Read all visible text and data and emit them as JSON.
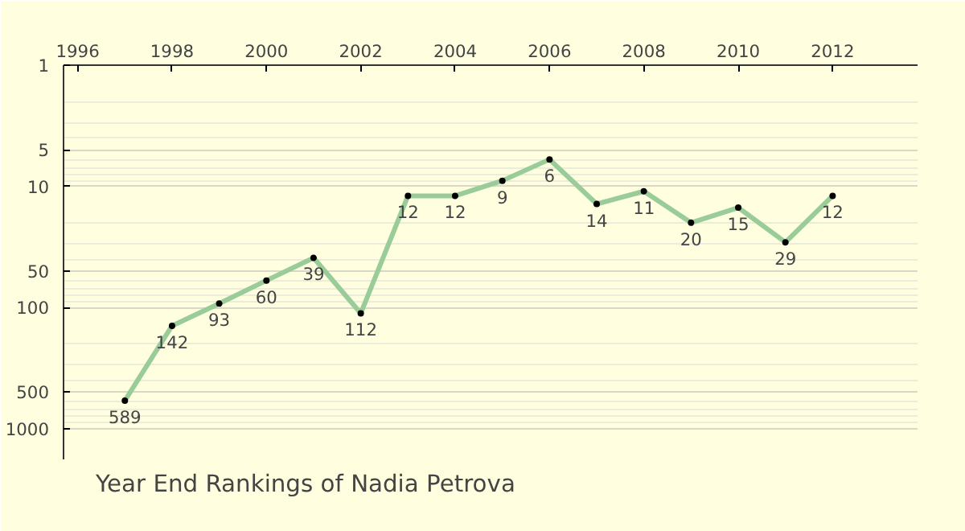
{
  "chart_data": {
    "type": "line",
    "title": "Year End Rankings of Nadia Petrova",
    "x": [
      1997,
      1998,
      1999,
      2000,
      2001,
      2002,
      2003,
      2004,
      2005,
      2006,
      2007,
      2008,
      2009,
      2010,
      2011,
      2012
    ],
    "series": [
      {
        "color": "#99cc99",
        "values": [
          589,
          142,
          93,
          60,
          39,
          112,
          12,
          12,
          9,
          6,
          14,
          11,
          20,
          15,
          29,
          12
        ]
      }
    ],
    "xlim": [
      1995.7,
      2013.8
    ],
    "xticks": [
      1996,
      1998,
      2000,
      2002,
      2004,
      2006,
      2008,
      2010,
      2012
    ],
    "ylim": [
      1800,
      1
    ],
    "yticks": [
      1,
      5,
      10,
      50,
      100,
      500,
      1000
    ],
    "log": "y",
    "grid": "y",
    "marker": "circle",
    "line_style": "solid",
    "data_labels": true
  }
}
